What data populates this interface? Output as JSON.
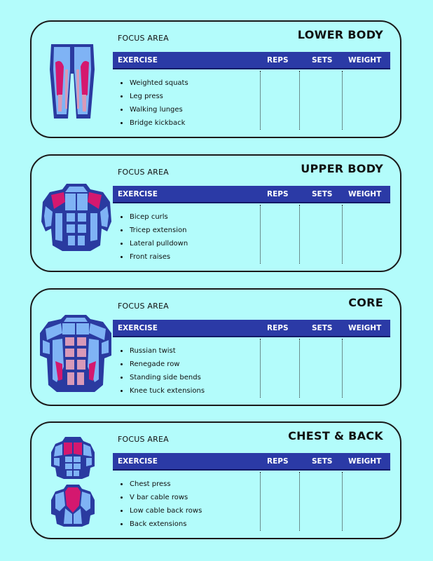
{
  "focus_label": "FOCUS AREA",
  "columns": {
    "exercise": "EXERCISE",
    "reps": "REPS",
    "sets": "SETS",
    "weight": "WEIGHT"
  },
  "sections": [
    {
      "title": "LOWER BODY",
      "icon": "legs-muscle-icon",
      "exercises": [
        "Weighted squats",
        "Leg press",
        "Walking lunges",
        "Bridge kickback"
      ]
    },
    {
      "title": "UPPER BODY",
      "icon": "upper-body-muscle-icon",
      "exercises": [
        "Bicep curls",
        "Tricep extension",
        "Lateral pulldown",
        "Front raises"
      ]
    },
    {
      "title": "CORE",
      "icon": "core-muscle-icon",
      "exercises": [
        "Russian twist",
        "Renegade row",
        "Standing side bends",
        "Knee tuck extensions"
      ]
    },
    {
      "title": "CHEST & BACK",
      "icon": "chest-back-muscle-icon",
      "exercises": [
        "Chest press",
        "V bar cable rows",
        "Low cable back rows",
        "Back extensions"
      ]
    }
  ],
  "colors": {
    "background": "#b3fcfb",
    "header": "#2b3aa6",
    "muscle_dark": "#2a3aa0",
    "muscle_light": "#7fb3f5",
    "muscle_highlight": "#d4186f",
    "muscle_pink": "#d899b8"
  }
}
